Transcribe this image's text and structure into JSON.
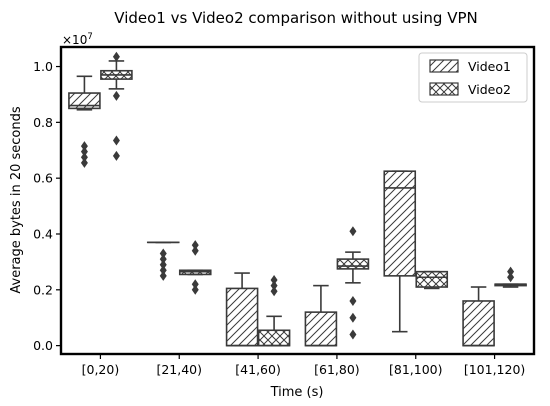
{
  "chart_data": {
    "type": "boxplot",
    "title": "Video1 vs Video2 comparison without using VPN",
    "xlabel": "Time (s)",
    "ylabel": "Average bytes in 20 seconds",
    "y_scale_label": "×10",
    "y_scale_exp": "7",
    "ylim": [
      -0.03,
      1.07
    ],
    "yticks": [
      0.0,
      0.2,
      0.4,
      0.6,
      0.8,
      1.0
    ],
    "categories": [
      "[0,20)",
      "[21,40)",
      "[41,60)",
      "[61,80)",
      "[81,100)",
      "[101,120)"
    ],
    "legend_position": "top-right",
    "grid": false,
    "series": [
      {
        "name": "Video1",
        "hatch": "diagonal",
        "boxes": [
          {
            "whislo": 0.845,
            "q1": 0.85,
            "med": 0.86,
            "q3": 0.905,
            "whishi": 0.965,
            "fliers": [
              0.655,
              0.675,
              0.695,
              0.715
            ]
          },
          {
            "whislo": 0.37,
            "q1": 0.37,
            "med": 0.37,
            "q3": 0.37,
            "whishi": 0.37,
            "fliers": [
              0.25,
              0.27,
              0.29,
              0.31,
              0.33
            ]
          },
          {
            "whislo": 0.0,
            "q1": 0.0,
            "med": 0.0,
            "q3": 0.205,
            "whishi": 0.26,
            "fliers": []
          },
          {
            "whislo": 0.0,
            "q1": 0.0,
            "med": 0.0,
            "q3": 0.12,
            "whishi": 0.215,
            "fliers": []
          },
          {
            "whislo": 0.05,
            "q1": 0.25,
            "med": 0.565,
            "q3": 0.625,
            "whishi": 0.625,
            "fliers": []
          },
          {
            "whislo": 0.0,
            "q1": 0.0,
            "med": 0.0,
            "q3": 0.16,
            "whishi": 0.21,
            "fliers": []
          }
        ]
      },
      {
        "name": "Video2",
        "hatch": "crosshatch",
        "boxes": [
          {
            "whislo": 0.92,
            "q1": 0.955,
            "med": 0.97,
            "q3": 0.985,
            "whishi": 1.02,
            "fliers": [
              0.68,
              0.735,
              0.895,
              1.035
            ]
          },
          {
            "whislo": 0.255,
            "q1": 0.255,
            "med": 0.265,
            "q3": 0.27,
            "whishi": 0.27,
            "fliers": [
              0.2,
              0.22,
              0.34,
              0.36
            ]
          },
          {
            "whislo": 0.0,
            "q1": 0.0,
            "med": 0.0,
            "q3": 0.055,
            "whishi": 0.105,
            "fliers": [
              0.195,
              0.215,
              0.235
            ]
          },
          {
            "whislo": 0.225,
            "q1": 0.275,
            "med": 0.285,
            "q3": 0.31,
            "whishi": 0.335,
            "fliers": [
              0.04,
              0.1,
              0.16,
              0.41
            ]
          },
          {
            "whislo": 0.205,
            "q1": 0.21,
            "med": 0.245,
            "q3": 0.265,
            "whishi": 0.265,
            "fliers": []
          },
          {
            "whislo": 0.21,
            "q1": 0.215,
            "med": 0.22,
            "q3": 0.22,
            "whishi": 0.22,
            "fliers": [
              0.245,
              0.265
            ]
          }
        ]
      }
    ]
  }
}
